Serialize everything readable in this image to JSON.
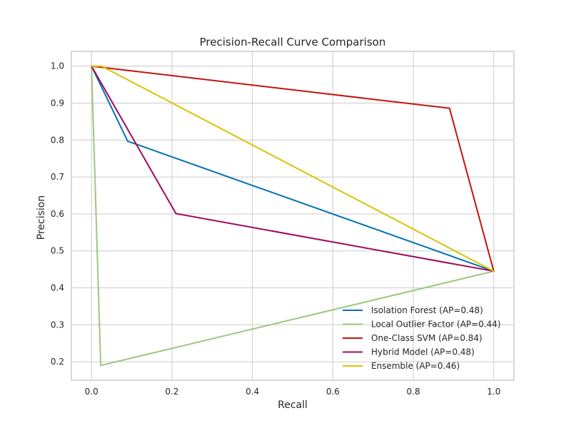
{
  "chart_data": {
    "type": "line",
    "title": "Precision-Recall Curve Comparison",
    "xlabel": "Recall",
    "ylabel": "Precision",
    "xlim": [
      -0.05,
      1.05
    ],
    "ylim": [
      0.15,
      1.04
    ],
    "xticks": [
      0.0,
      0.2,
      0.4,
      0.6,
      0.8,
      1.0
    ],
    "yticks": [
      0.2,
      0.3,
      0.4,
      0.5,
      0.6,
      0.7,
      0.8,
      0.9,
      1.0
    ],
    "xtick_labels": [
      "0.0",
      "0.2",
      "0.4",
      "0.6",
      "0.8",
      "1.0"
    ],
    "ytick_labels": [
      "0.2",
      "0.3",
      "0.4",
      "0.5",
      "0.6",
      "0.7",
      "0.8",
      "0.9",
      "1.0"
    ],
    "grid": true,
    "legend_position": "lower-right",
    "series": [
      {
        "name": "Isolation Forest (AP=0.48)",
        "color": "#0072B2",
        "x": [
          0.0,
          0.09,
          1.0
        ],
        "y": [
          1.0,
          0.797,
          0.445
        ]
      },
      {
        "name": "Local Outlier Factor (AP=0.44)",
        "color": "#9DC67E",
        "x": [
          0.0,
          0.023,
          1.0
        ],
        "y": [
          1.0,
          0.19,
          0.445
        ]
      },
      {
        "name": "One-Class SVM (AP=0.84)",
        "color": "#C4140C",
        "x": [
          0.0,
          0.89,
          1.0
        ],
        "y": [
          1.0,
          0.886,
          0.445
        ]
      },
      {
        "name": "Hybrid Model (AP=0.48)",
        "color": "#A2095A",
        "x": [
          0.0,
          0.21,
          1.0
        ],
        "y": [
          1.0,
          0.601,
          0.445
        ]
      },
      {
        "name": "Ensemble (AP=0.46)",
        "color": "#D8C500",
        "x": [
          0.0,
          0.025,
          1.0
        ],
        "y": [
          1.0,
          1.0,
          0.445
        ]
      }
    ]
  }
}
